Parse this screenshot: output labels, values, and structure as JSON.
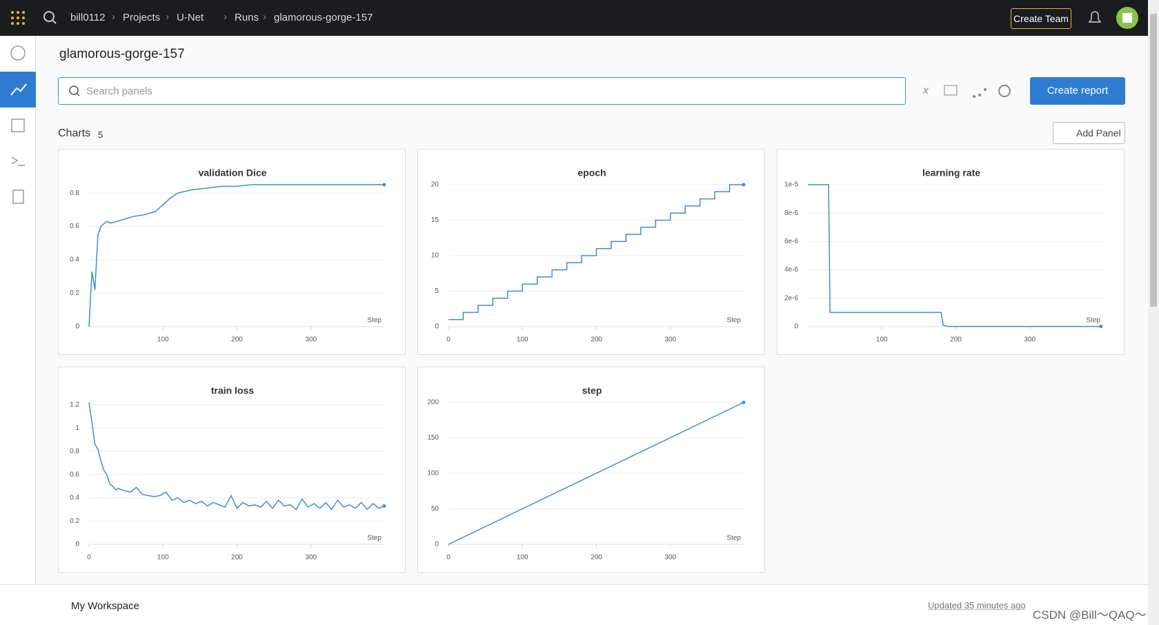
{
  "header": {
    "breadcrumbs": [
      "bill0112",
      "Projects",
      "U-Net",
      "Runs",
      "glamorous-gorge-157"
    ],
    "create_team": "Create Team"
  },
  "run_title": "glamorous-gorge-157",
  "search_placeholder": "Search panels",
  "create_report": "Create report",
  "section": {
    "title": "Charts",
    "count": 5,
    "add_panel": "Add Panel"
  },
  "footer": {
    "workspace": "My Workspace",
    "updated": "Updated 35 minutes ago"
  },
  "watermark": "CSDN @Bill～QAQ～",
  "chart_data": [
    {
      "type": "line",
      "title": "validation Dice",
      "x_label": "Step",
      "color": "#3a8ed3",
      "x": [
        0,
        4,
        8,
        12,
        16,
        24,
        30,
        45,
        60,
        75,
        90,
        100,
        110,
        120,
        140,
        160,
        180,
        200,
        220,
        260,
        300,
        340,
        399
      ],
      "values": [
        0,
        0.33,
        0.22,
        0.55,
        0.6,
        0.63,
        0.62,
        0.64,
        0.66,
        0.67,
        0.69,
        0.73,
        0.77,
        0.8,
        0.82,
        0.83,
        0.84,
        0.84,
        0.85,
        0.85,
        0.85,
        0.85,
        0.85
      ],
      "xlim": [
        0,
        400
      ],
      "xticks": [
        100,
        200,
        300
      ],
      "ylim": [
        0,
        0.85
      ],
      "yticks": [
        0,
        0.2,
        0.4,
        0.6,
        0.8
      ],
      "grid": true
    },
    {
      "type": "line",
      "title": "epoch",
      "x_label": "Step",
      "color": "#3a8ed3",
      "x": [
        0,
        20,
        20,
        40,
        40,
        60,
        60,
        80,
        80,
        100,
        100,
        120,
        120,
        140,
        140,
        160,
        160,
        180,
        180,
        200,
        200,
        220,
        220,
        240,
        240,
        260,
        260,
        280,
        280,
        300,
        300,
        320,
        320,
        340,
        340,
        360,
        360,
        380,
        380,
        399
      ],
      "values": [
        1,
        1,
        2,
        2,
        3,
        3,
        4,
        4,
        5,
        5,
        6,
        6,
        7,
        7,
        8,
        8,
        9,
        9,
        10,
        10,
        11,
        11,
        12,
        12,
        13,
        13,
        14,
        14,
        15,
        15,
        16,
        16,
        17,
        17,
        18,
        18,
        19,
        19,
        20,
        20
      ],
      "xlim": [
        0,
        400
      ],
      "xticks": [
        0,
        100,
        200,
        300
      ],
      "ylim": [
        0,
        20
      ],
      "yticks": [
        0,
        5,
        10,
        15,
        20
      ],
      "grid": true
    },
    {
      "type": "line",
      "title": "learning rate",
      "x_label": "Step",
      "color": "#3a8ed3",
      "x": [
        0,
        28,
        30,
        180,
        183,
        190,
        396
      ],
      "values": [
        1e-05,
        1e-05,
        1e-06,
        1e-06,
        1e-07,
        1e-08,
        1e-08
      ],
      "xlim": [
        0,
        400
      ],
      "xticks": [
        100,
        200,
        300
      ],
      "ylim": [
        0,
        1e-05
      ],
      "yticks": [
        0,
        {
          "value": 2e-06,
          "label": "2e-6"
        },
        {
          "value": 4e-06,
          "label": "4e-6"
        },
        {
          "value": 6e-06,
          "label": "6e-6"
        },
        {
          "value": 8e-06,
          "label": "8e-6"
        },
        {
          "value": 1e-05,
          "label": "1e-5"
        }
      ],
      "grid": true
    },
    {
      "type": "line",
      "title": "train loss",
      "x_label": "Step",
      "color": "#3a8ed3",
      "x": [
        0,
        4,
        8,
        12,
        16,
        20,
        24,
        28,
        32,
        36,
        40,
        48,
        56,
        64,
        72,
        80,
        88,
        96,
        104,
        112,
        120,
        128,
        136,
        144,
        152,
        160,
        168,
        176,
        184,
        192,
        200,
        208,
        216,
        224,
        232,
        240,
        248,
        256,
        264,
        272,
        280,
        288,
        296,
        304,
        312,
        320,
        328,
        336,
        344,
        352,
        360,
        368,
        376,
        384,
        392,
        399
      ],
      "values": [
        1.22,
        1.05,
        0.86,
        0.82,
        0.72,
        0.64,
        0.6,
        0.52,
        0.5,
        0.47,
        0.48,
        0.46,
        0.45,
        0.49,
        0.43,
        0.42,
        0.41,
        0.42,
        0.45,
        0.38,
        0.4,
        0.36,
        0.38,
        0.35,
        0.37,
        0.33,
        0.36,
        0.34,
        0.32,
        0.42,
        0.31,
        0.36,
        0.33,
        0.34,
        0.32,
        0.37,
        0.31,
        0.38,
        0.33,
        0.34,
        0.3,
        0.39,
        0.32,
        0.35,
        0.31,
        0.36,
        0.3,
        0.38,
        0.32,
        0.34,
        0.31,
        0.36,
        0.3,
        0.35,
        0.31,
        0.33
      ],
      "xlim": [
        0,
        400
      ],
      "xticks": [
        0,
        100,
        200,
        300
      ],
      "ylim": [
        0,
        1.22
      ],
      "yticks": [
        0,
        0.2,
        0.4,
        0.6,
        0.8,
        1,
        1.2
      ],
      "grid": true
    },
    {
      "type": "line",
      "title": "step",
      "x_label": "Step",
      "color": "#3a8ed3",
      "x": [
        0,
        399
      ],
      "values": [
        0,
        200
      ],
      "xlim": [
        0,
        400
      ],
      "xticks": [
        0,
        100,
        200,
        300
      ],
      "ylim": [
        0,
        200
      ],
      "yticks": [
        0,
        50,
        100,
        150,
        200
      ],
      "grid": true
    }
  ]
}
